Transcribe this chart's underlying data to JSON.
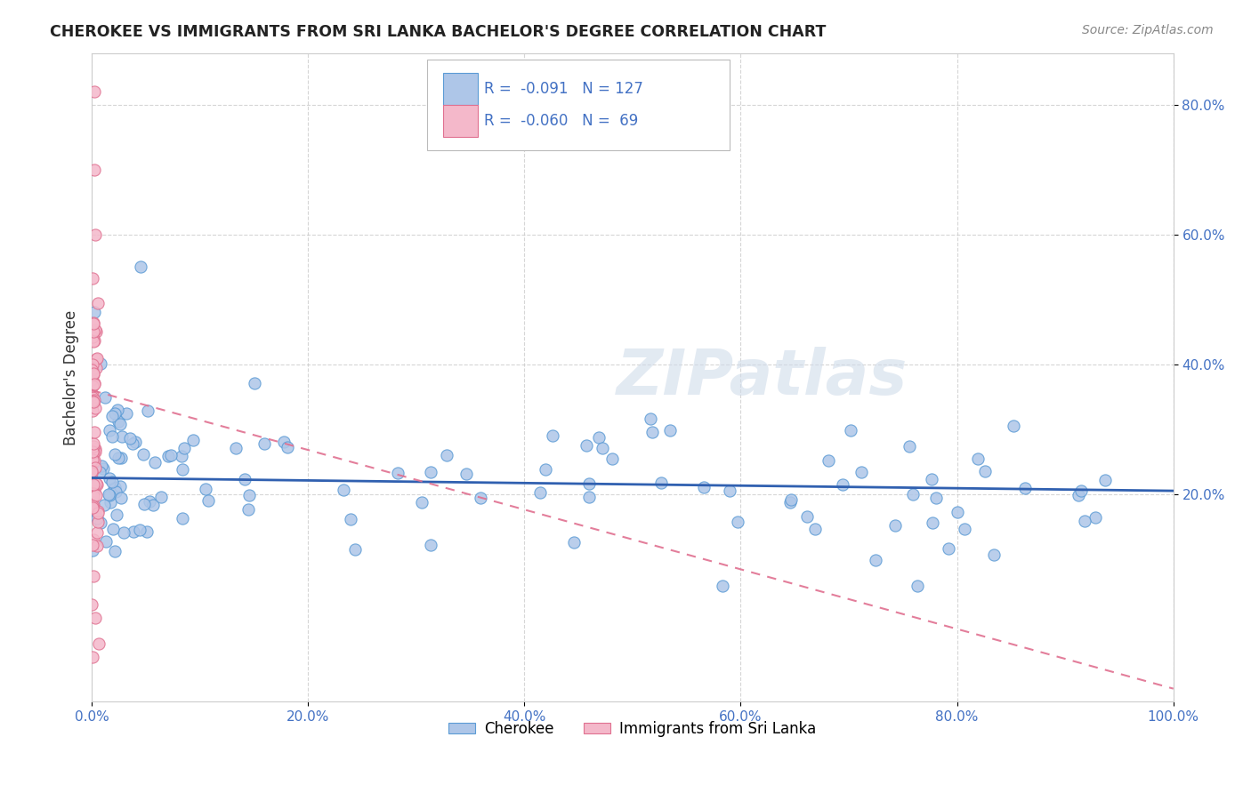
{
  "title": "CHEROKEE VS IMMIGRANTS FROM SRI LANKA BACHELOR'S DEGREE CORRELATION CHART",
  "source": "Source: ZipAtlas.com",
  "ylabel": "Bachelor's Degree",
  "xlim": [
    0.0,
    1.0
  ],
  "ylim": [
    -0.12,
    0.88
  ],
  "xticks": [
    0.0,
    0.2,
    0.4,
    0.6,
    0.8,
    1.0
  ],
  "xtick_labels": [
    "0.0%",
    "20.0%",
    "40.0%",
    "60.0%",
    "80.0%",
    "100.0%"
  ],
  "yticks": [
    0.2,
    0.4,
    0.6,
    0.8
  ],
  "ytick_labels": [
    "20.0%",
    "40.0%",
    "60.0%",
    "80.0%"
  ],
  "cherokee_color": "#aec6e8",
  "cherokee_edge": "#5b9bd5",
  "sri_lanka_color": "#f4b8ca",
  "sri_lanka_edge": "#e07090",
  "trend_cherokee_color": "#3060b0",
  "trend_sri_lanka_color": "#e07090",
  "watermark": "ZIPatlas",
  "legend_r_cherokee": "-0.091",
  "legend_n_cherokee": "127",
  "legend_r_sri_lanka": "-0.060",
  "legend_n_sri_lanka": "69",
  "title_color": "#222222",
  "source_color": "#888888",
  "axis_color": "#4472c4",
  "grid_color": "#cccccc"
}
